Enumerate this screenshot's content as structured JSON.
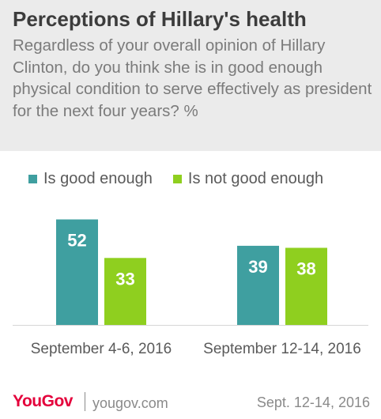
{
  "header": {
    "title": "Perceptions of Hillary's health",
    "subtitle": "Regardless of your overall opinion of Hillary Clinton, do you think she is in good enough physical condition to serve effectively as president for the next four years? %"
  },
  "colors": {
    "good": "#3f9fa0",
    "not_good": "#8fcf1f",
    "header_bg": "#ebebeb"
  },
  "chart_data": {
    "type": "bar",
    "categories": [
      "September 4-6, 2016",
      "September 12-14, 2016"
    ],
    "series": [
      {
        "name": "Is good enough",
        "values": [
          52,
          39
        ]
      },
      {
        "name": "Is not good enough",
        "values": [
          33,
          38
        ]
      }
    ],
    "ylim": [
      0,
      60
    ],
    "grid": false,
    "legend": "top-left"
  },
  "footer": {
    "brand": "YouGov",
    "site": "yougov.com",
    "date": "Sept. 12-14, 2016"
  }
}
